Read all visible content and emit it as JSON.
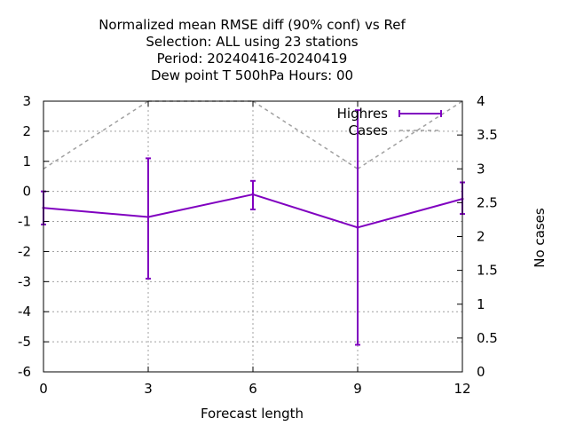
{
  "chart_data": {
    "type": "line",
    "title_lines": [
      "Normalized mean RMSE diff (90% conf) vs Ref",
      "Selection: ALL using    23 stations",
      "Period: 20240416-20240419",
      "Dew point T 500hPa   Hours:  00"
    ],
    "xlabel": "Forecast length",
    "ylabel": "",
    "y2label": "No cases",
    "x": [
      0,
      3,
      6,
      9,
      12
    ],
    "xlim": [
      0,
      12
    ],
    "ylim": [
      -6,
      3
    ],
    "y2lim": [
      0,
      4
    ],
    "x_ticks": [
      "0",
      "3",
      "6",
      "9",
      "12"
    ],
    "y_ticks": [
      "-6",
      "-5",
      "-4",
      "-3",
      "-2",
      "-1",
      "0",
      "1",
      "2",
      "3"
    ],
    "y2_ticks": [
      "0",
      "0.5",
      "1",
      "1.5",
      "2",
      "2.5",
      "3",
      "3.5",
      "4"
    ],
    "grid": true,
    "legend_position": "top-right",
    "series": [
      {
        "name": "Highres",
        "axis": "left",
        "color": "#8000c0",
        "style": "line-errorbars",
        "values": [
          -0.55,
          -0.85,
          -0.1,
          -1.2,
          -0.25
        ],
        "error_low": [
          -1.1,
          -2.9,
          -0.6,
          -5.1,
          -0.75
        ],
        "error_high": [
          0.0,
          1.1,
          0.35,
          2.7,
          0.3
        ]
      },
      {
        "name": "Cases",
        "axis": "right",
        "color": "#a0a0a0",
        "style": "dashed",
        "values": [
          3,
          4,
          4,
          3,
          4
        ]
      }
    ]
  }
}
